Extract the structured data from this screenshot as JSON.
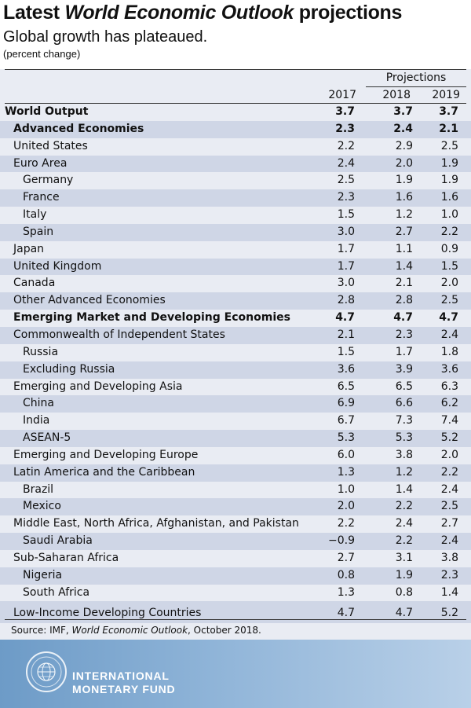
{
  "header": {
    "title_plain": "Latest ",
    "title_italic": "World Economic Outlook",
    "title_tail": " projections",
    "subtitle": "Global growth has plateaued.",
    "unit": "(percent change)"
  },
  "table": {
    "projections_label": "Projections",
    "years": [
      "2017",
      "2018",
      "2019"
    ]
  },
  "chart_data": {
    "type": "table",
    "columns": [
      "2017",
      "2018",
      "2019"
    ],
    "rows": [
      {
        "label": "World Output",
        "values": [
          "3.7",
          "3.7",
          "3.7"
        ],
        "bold": true,
        "indent": 0
      },
      {
        "label": "Advanced Economies",
        "values": [
          "2.3",
          "2.4",
          "2.1"
        ],
        "bold": true,
        "indent": 1
      },
      {
        "label": "United States",
        "values": [
          "2.2",
          "2.9",
          "2.5"
        ],
        "bold": false,
        "indent": 1
      },
      {
        "label": "Euro Area",
        "values": [
          "2.4",
          "2.0",
          "1.9"
        ],
        "bold": false,
        "indent": 1
      },
      {
        "label": "Germany",
        "values": [
          "2.5",
          "1.9",
          "1.9"
        ],
        "bold": false,
        "indent": 2
      },
      {
        "label": "France",
        "values": [
          "2.3",
          "1.6",
          "1.6"
        ],
        "bold": false,
        "indent": 2
      },
      {
        "label": "Italy",
        "values": [
          "1.5",
          "1.2",
          "1.0"
        ],
        "bold": false,
        "indent": 2
      },
      {
        "label": "Spain",
        "values": [
          "3.0",
          "2.7",
          "2.2"
        ],
        "bold": false,
        "indent": 2
      },
      {
        "label": "Japan",
        "values": [
          "1.7",
          "1.1",
          "0.9"
        ],
        "bold": false,
        "indent": 1
      },
      {
        "label": "United Kingdom",
        "values": [
          "1.7",
          "1.4",
          "1.5"
        ],
        "bold": false,
        "indent": 1
      },
      {
        "label": "Canada",
        "values": [
          "3.0",
          "2.1",
          "2.0"
        ],
        "bold": false,
        "indent": 1
      },
      {
        "label": "Other Advanced Economies",
        "values": [
          "2.8",
          "2.8",
          "2.5"
        ],
        "bold": false,
        "indent": 1
      },
      {
        "label": "Emerging Market and Developing Economies",
        "values": [
          "4.7",
          "4.7",
          "4.7"
        ],
        "bold": true,
        "indent": 1
      },
      {
        "label": "Commonwealth of Independent States",
        "values": [
          "2.1",
          "2.3",
          "2.4"
        ],
        "bold": false,
        "indent": 1
      },
      {
        "label": "Russia",
        "values": [
          "1.5",
          "1.7",
          "1.8"
        ],
        "bold": false,
        "indent": 2
      },
      {
        "label": "Excluding Russia",
        "values": [
          "3.6",
          "3.9",
          "3.6"
        ],
        "bold": false,
        "indent": 2
      },
      {
        "label": "Emerging and Developing Asia",
        "values": [
          "6.5",
          "6.5",
          "6.3"
        ],
        "bold": false,
        "indent": 1
      },
      {
        "label": "China",
        "values": [
          "6.9",
          "6.6",
          "6.2"
        ],
        "bold": false,
        "indent": 2
      },
      {
        "label": "India",
        "values": [
          "6.7",
          "7.3",
          "7.4"
        ],
        "bold": false,
        "indent": 2
      },
      {
        "label": "ASEAN-5",
        "values": [
          "5.3",
          "5.3",
          "5.2"
        ],
        "bold": false,
        "indent": 2
      },
      {
        "label": "Emerging and Developing Europe",
        "values": [
          "6.0",
          "3.8",
          "2.0"
        ],
        "bold": false,
        "indent": 1
      },
      {
        "label": "Latin America and the Caribbean",
        "values": [
          "1.3",
          "1.2",
          "2.2"
        ],
        "bold": false,
        "indent": 1
      },
      {
        "label": "Brazil",
        "values": [
          "1.0",
          "1.4",
          "2.4"
        ],
        "bold": false,
        "indent": 2
      },
      {
        "label": "Mexico",
        "values": [
          "2.0",
          "2.2",
          "2.5"
        ],
        "bold": false,
        "indent": 2
      },
      {
        "label": "Middle East, North Africa, Afghanistan, and Pakistan",
        "values": [
          "2.2",
          "2.4",
          "2.7"
        ],
        "bold": false,
        "indent": 1
      },
      {
        "label": "Saudi Arabia",
        "values": [
          "−0.9",
          "2.2",
          "2.4"
        ],
        "bold": false,
        "indent": 2
      },
      {
        "label": "Sub-Saharan Africa",
        "values": [
          "2.7",
          "3.1",
          "3.8"
        ],
        "bold": false,
        "indent": 1
      },
      {
        "label": "Nigeria",
        "values": [
          "0.8",
          "1.9",
          "2.3"
        ],
        "bold": false,
        "indent": 2
      },
      {
        "label": "South Africa",
        "values": [
          "1.3",
          "0.8",
          "1.4"
        ],
        "bold": false,
        "indent": 2
      },
      {
        "label": "Low-Income Developing Countries",
        "values": [
          "4.7",
          "4.7",
          "5.2"
        ],
        "bold": false,
        "indent": 1
      }
    ]
  },
  "source": {
    "prefix": "Source: IMF, ",
    "italic": "World Economic Outlook",
    "suffix": ", October 2018."
  },
  "footer": {
    "org_line1": "INTERNATIONAL",
    "org_line2": "MONETARY FUND"
  },
  "colors": {
    "panel": "#e9ecf3",
    "stripe": "#cfd6e6",
    "footer_left": "#6d9bc7",
    "footer_right": "#b9d0e8"
  }
}
